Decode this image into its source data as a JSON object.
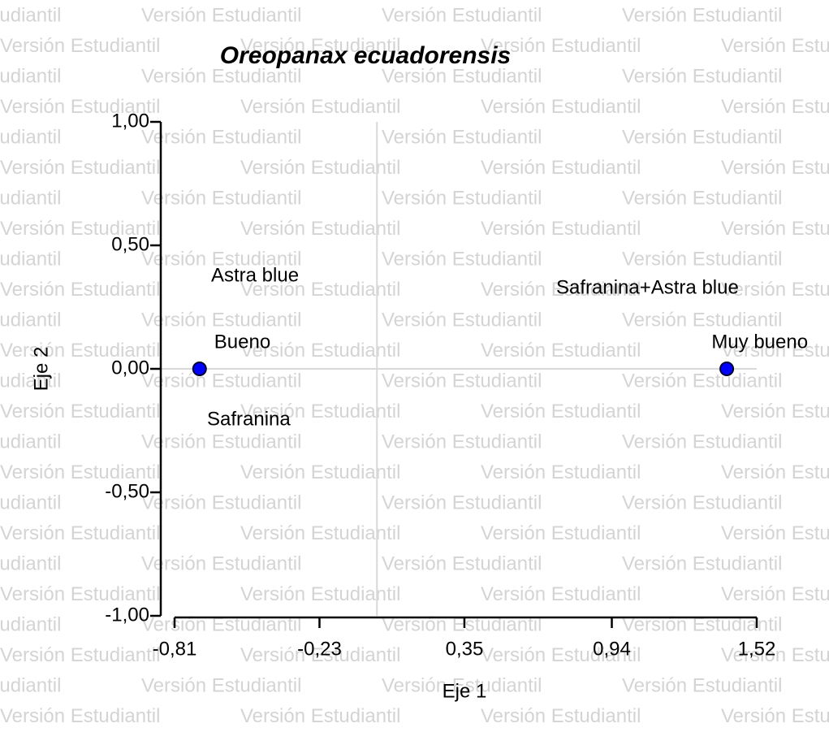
{
  "watermark": "Versión Estudiantil",
  "chart_data": {
    "type": "scatter",
    "title": "Oreopanax ecuadorensis",
    "x_label": "Eje 1",
    "y_label": "Eje 2",
    "x": [
      -0.71,
      1.4
    ],
    "values": [
      0,
      0
    ],
    "point_labels": [
      "Bueno",
      "Muy bueno"
    ],
    "color": "#0000ff",
    "annotations": [
      "Astra blue",
      "Safranina",
      "Safranina+Astra blue"
    ],
    "xlim": [
      -0.81,
      1.52
    ],
    "xticks": [
      {
        "value": -0.81,
        "label": "-0,81"
      },
      {
        "value": -0.23,
        "label": "-0,23"
      },
      {
        "value": 0.35,
        "label": "0,35"
      },
      {
        "value": 0.94,
        "label": "0,94"
      },
      {
        "value": 1.52,
        "label": "1,52"
      }
    ],
    "ylim": [
      -1,
      1
    ],
    "yticks": [
      {
        "value": -1,
        "label": "-1,00"
      },
      {
        "value": -0.5,
        "label": "-0,50"
      },
      {
        "value": 0,
        "label": "0,00"
      },
      {
        "value": 0.5,
        "label": "0,50"
      },
      {
        "value": 1,
        "label": "1,00"
      }
    ],
    "hline": 0,
    "vline": 0
  }
}
